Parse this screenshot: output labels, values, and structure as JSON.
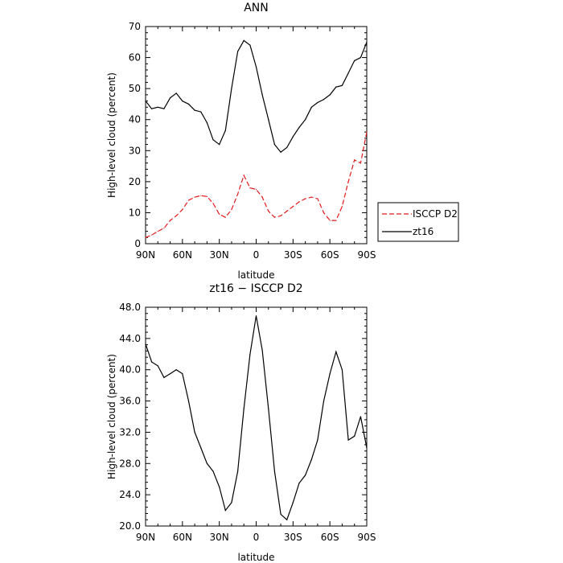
{
  "chart_data": [
    {
      "type": "line",
      "title": "ANN",
      "xlabel": "latitude",
      "ylabel": "High-level cloud (percent)",
      "xlim": [
        90,
        -90
      ],
      "ylim": [
        0,
        70
      ],
      "x_ticks": [
        90,
        60,
        30,
        0,
        -30,
        -60,
        -90
      ],
      "x_tick_labels": [
        "90N",
        "60N",
        "30N",
        "0",
        "30S",
        "60S",
        "90S"
      ],
      "y_ticks": [
        0,
        10,
        20,
        30,
        40,
        50,
        60,
        70
      ],
      "y_tick_labels": [
        "0",
        "10",
        "20",
        "30",
        "40",
        "50",
        "60",
        "70"
      ],
      "legend_position": "right",
      "series": [
        {
          "name": "ISCCP D2",
          "color": "#e31a1c",
          "dash": "dashed",
          "x": [
            90,
            85,
            80,
            75,
            70,
            65,
            60,
            55,
            50,
            45,
            40,
            35,
            30,
            25,
            20,
            15,
            10,
            5,
            0,
            -5,
            -10,
            -15,
            -20,
            -25,
            -30,
            -35,
            -40,
            -45,
            -50,
            -55,
            -60,
            -65,
            -70,
            -75,
            -80,
            -85,
            -90
          ],
          "y": [
            2.0,
            2.8,
            4.0,
            5.0,
            7.5,
            9.0,
            11.0,
            14.0,
            15.0,
            15.5,
            15.2,
            13.0,
            9.5,
            8.5,
            11.0,
            16.0,
            22.0,
            18.0,
            17.5,
            15.0,
            10.5,
            8.5,
            9.0,
            10.5,
            12.0,
            13.5,
            14.5,
            15.0,
            14.5,
            10.0,
            7.5,
            7.5,
            12.0,
            20.0,
            27.0,
            26.0,
            36.0
          ]
        },
        {
          "name": "zt16",
          "color": "#000000",
          "dash": "solid",
          "x": [
            90,
            85,
            80,
            75,
            70,
            65,
            60,
            55,
            50,
            45,
            40,
            35,
            30,
            25,
            20,
            15,
            10,
            5,
            0,
            -5,
            -10,
            -15,
            -20,
            -25,
            -30,
            -35,
            -40,
            -45,
            -50,
            -55,
            -60,
            -65,
            -70,
            -75,
            -80,
            -85,
            -90
          ],
          "y": [
            46.0,
            43.5,
            44.0,
            43.5,
            47.0,
            48.5,
            46.0,
            45.0,
            43.0,
            42.5,
            39.0,
            33.5,
            32.0,
            36.5,
            50.0,
            62.0,
            65.5,
            64.0,
            57.0,
            48.0,
            40.0,
            32.0,
            29.5,
            31.0,
            34.5,
            37.5,
            40.0,
            44.0,
            45.5,
            46.5,
            48.0,
            50.5,
            51.0,
            55.0,
            59.0,
            60.0,
            65.0
          ]
        }
      ]
    },
    {
      "type": "line",
      "title": "zt16 − ISCCP D2",
      "xlabel": "latitude",
      "ylabel": "High-level cloud (percent)",
      "xlim": [
        90,
        -90
      ],
      "ylim": [
        20,
        48
      ],
      "x_ticks": [
        90,
        60,
        30,
        0,
        -30,
        -60,
        -90
      ],
      "x_tick_labels": [
        "90N",
        "60N",
        "30N",
        "0",
        "30S",
        "60S",
        "90S"
      ],
      "y_ticks": [
        20,
        24,
        28,
        32,
        36,
        40,
        44,
        48
      ],
      "y_tick_labels": [
        "20.0",
        "24.0",
        "28.0",
        "32.0",
        "36.0",
        "40.0",
        "44.0",
        "48.0"
      ],
      "series": [
        {
          "color": "#000000",
          "dash": "solid",
          "x": [
            90,
            85,
            80,
            75,
            70,
            65,
            60,
            55,
            50,
            45,
            40,
            35,
            30,
            25,
            20,
            15,
            10,
            5,
            0,
            -5,
            -10,
            -15,
            -20,
            -25,
            -30,
            -35,
            -40,
            -45,
            -50,
            -55,
            -60,
            -65,
            -70,
            -75,
            -80,
            -85,
            -90
          ],
          "y": [
            43.3,
            41.0,
            40.5,
            39.0,
            39.5,
            40.0,
            39.5,
            36.0,
            32.0,
            30.0,
            28.0,
            27.0,
            25.0,
            22.0,
            23.0,
            27.0,
            35.0,
            42.0,
            46.9,
            42.5,
            35.0,
            27.0,
            21.5,
            20.8,
            23.0,
            25.5,
            26.5,
            28.5,
            31.0,
            36.0,
            39.5,
            42.3,
            40.0,
            31.0,
            31.5,
            34.0,
            30.0
          ]
        }
      ]
    }
  ]
}
